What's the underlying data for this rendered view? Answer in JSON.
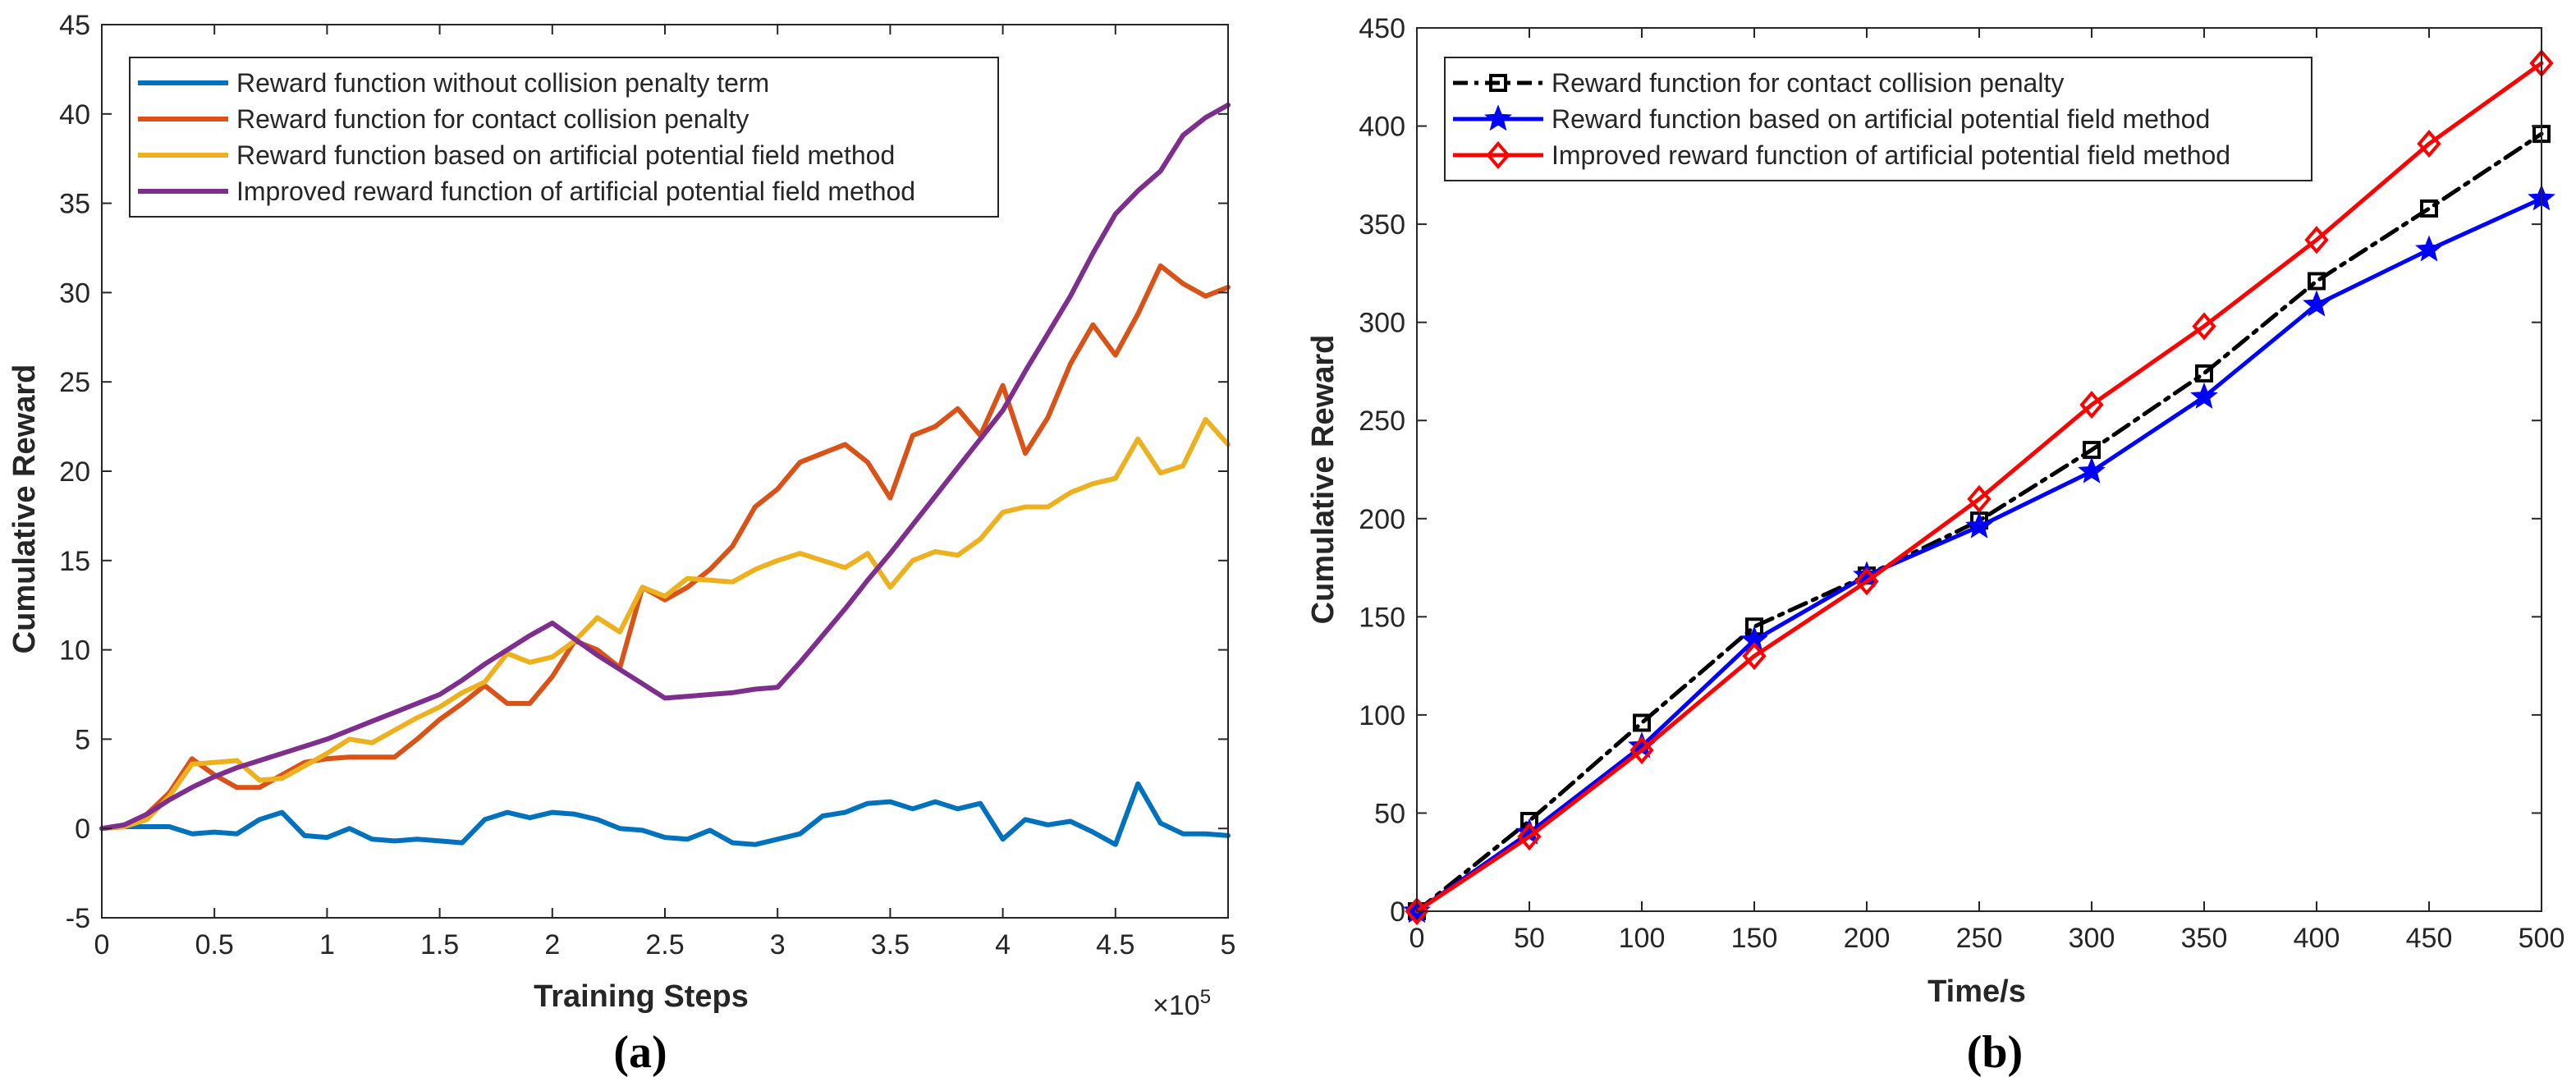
{
  "chart_data": [
    {
      "type": "line",
      "panel_label": "(a)",
      "xlabel": "Training Steps",
      "ylabel": "Cumulative Reward",
      "x_exponent_label": "×10",
      "x_exponent": "5",
      "xlim": [
        0,
        5
      ],
      "ylim": [
        -5,
        45
      ],
      "xticks": [
        0,
        0.5,
        1,
        1.5,
        2,
        2.5,
        3,
        3.5,
        4,
        4.5,
        5
      ],
      "xtick_labels": [
        "0",
        "0.5",
        "1",
        "1.5",
        "2",
        "2.5",
        "3",
        "3.5",
        "4",
        "4.5",
        "5"
      ],
      "yticks": [
        -5,
        0,
        5,
        10,
        15,
        20,
        25,
        30,
        35,
        40,
        45
      ],
      "ytick_labels": [
        "-5",
        "0",
        "5",
        "10",
        "15",
        "20",
        "25",
        "30",
        "35",
        "40",
        "45"
      ],
      "legend_position": "top-left",
      "series": [
        {
          "name": "Reward function without collision penalty term",
          "color": "#0072BD",
          "points": [
            [
              0,
              0
            ],
            [
              0.1,
              0.1
            ],
            [
              0.2,
              0.1
            ],
            [
              0.3,
              0.1
            ],
            [
              0.4,
              -0.3
            ],
            [
              0.5,
              -0.2
            ],
            [
              0.6,
              -0.3
            ],
            [
              0.7,
              0.5
            ],
            [
              0.8,
              0.9
            ],
            [
              0.9,
              -0.4
            ],
            [
              1.0,
              -0.5
            ],
            [
              1.1,
              0.0
            ],
            [
              1.2,
              -0.6
            ],
            [
              1.3,
              -0.7
            ],
            [
              1.4,
              -0.6
            ],
            [
              1.5,
              -0.7
            ],
            [
              1.6,
              -0.8
            ],
            [
              1.7,
              0.5
            ],
            [
              1.8,
              0.9
            ],
            [
              1.9,
              0.6
            ],
            [
              2.0,
              0.9
            ],
            [
              2.1,
              0.8
            ],
            [
              2.2,
              0.5
            ],
            [
              2.3,
              0.0
            ],
            [
              2.4,
              -0.1
            ],
            [
              2.5,
              -0.5
            ],
            [
              2.6,
              -0.6
            ],
            [
              2.7,
              -0.1
            ],
            [
              2.8,
              -0.8
            ],
            [
              2.9,
              -0.9
            ],
            [
              3.0,
              -0.6
            ],
            [
              3.1,
              -0.3
            ],
            [
              3.2,
              0.7
            ],
            [
              3.3,
              0.9
            ],
            [
              3.4,
              1.4
            ],
            [
              3.5,
              1.5
            ],
            [
              3.6,
              1.1
            ],
            [
              3.7,
              1.5
            ],
            [
              3.8,
              1.1
            ],
            [
              3.9,
              1.4
            ],
            [
              4.0,
              -0.6
            ],
            [
              4.1,
              0.5
            ],
            [
              4.2,
              0.2
            ],
            [
              4.3,
              0.4
            ],
            [
              4.4,
              -0.2
            ],
            [
              4.5,
              -0.9
            ],
            [
              4.6,
              2.5
            ],
            [
              4.7,
              0.3
            ],
            [
              4.8,
              -0.3
            ],
            [
              4.9,
              -0.3
            ],
            [
              5.0,
              -0.4
            ]
          ]
        },
        {
          "name": "Reward function for contact collision penalty",
          "color": "#D95319",
          "points": [
            [
              0,
              0
            ],
            [
              0.1,
              0.1
            ],
            [
              0.2,
              0.8
            ],
            [
              0.3,
              2.0
            ],
            [
              0.4,
              3.9
            ],
            [
              0.5,
              3.0
            ],
            [
              0.6,
              2.3
            ],
            [
              0.7,
              2.3
            ],
            [
              0.8,
              3.0
            ],
            [
              0.9,
              3.7
            ],
            [
              1.0,
              3.9
            ],
            [
              1.1,
              4.0
            ],
            [
              1.2,
              4.0
            ],
            [
              1.3,
              4.0
            ],
            [
              1.4,
              5.0
            ],
            [
              1.5,
              6.1
            ],
            [
              1.6,
              7.0
            ],
            [
              1.7,
              8.0
            ],
            [
              1.8,
              7.0
            ],
            [
              1.9,
              7.0
            ],
            [
              2.0,
              8.5
            ],
            [
              2.1,
              10.5
            ],
            [
              2.2,
              10.0
            ],
            [
              2.3,
              9.0
            ],
            [
              2.4,
              13.5
            ],
            [
              2.5,
              12.8
            ],
            [
              2.6,
              13.5
            ],
            [
              2.7,
              14.5
            ],
            [
              2.8,
              15.8
            ],
            [
              2.9,
              18.0
            ],
            [
              3.0,
              19.0
            ],
            [
              3.1,
              20.5
            ],
            [
              3.2,
              21.0
            ],
            [
              3.3,
              21.5
            ],
            [
              3.4,
              20.5
            ],
            [
              3.5,
              18.5
            ],
            [
              3.6,
              22.0
            ],
            [
              3.7,
              22.5
            ],
            [
              3.8,
              23.5
            ],
            [
              3.9,
              22.0
            ],
            [
              4.0,
              24.8
            ],
            [
              4.1,
              21.0
            ],
            [
              4.2,
              23.0
            ],
            [
              4.3,
              26.0
            ],
            [
              4.4,
              28.2
            ],
            [
              4.5,
              26.5
            ],
            [
              4.6,
              28.8
            ],
            [
              4.7,
              31.5
            ],
            [
              4.8,
              30.5
            ],
            [
              4.9,
              29.8
            ],
            [
              5.0,
              30.3
            ]
          ]
        },
        {
          "name": "Reward function based on artificial potential field method",
          "color": "#EDB120",
          "points": [
            [
              0,
              0
            ],
            [
              0.1,
              0.1
            ],
            [
              0.2,
              0.5
            ],
            [
              0.3,
              1.8
            ],
            [
              0.4,
              3.6
            ],
            [
              0.5,
              3.7
            ],
            [
              0.6,
              3.8
            ],
            [
              0.7,
              2.7
            ],
            [
              0.8,
              2.8
            ],
            [
              0.9,
              3.5
            ],
            [
              1.0,
              4.2
            ],
            [
              1.1,
              5.0
            ],
            [
              1.2,
              4.8
            ],
            [
              1.3,
              5.5
            ],
            [
              1.4,
              6.2
            ],
            [
              1.5,
              6.8
            ],
            [
              1.6,
              7.6
            ],
            [
              1.7,
              8.2
            ],
            [
              1.8,
              9.8
            ],
            [
              1.9,
              9.3
            ],
            [
              2.0,
              9.6
            ],
            [
              2.1,
              10.5
            ],
            [
              2.2,
              11.8
            ],
            [
              2.3,
              11.0
            ],
            [
              2.4,
              13.5
            ],
            [
              2.5,
              13.0
            ],
            [
              2.6,
              14.0
            ],
            [
              2.7,
              13.9
            ],
            [
              2.8,
              13.8
            ],
            [
              2.9,
              14.5
            ],
            [
              3.0,
              15.0
            ],
            [
              3.1,
              15.4
            ],
            [
              3.2,
              15.0
            ],
            [
              3.3,
              14.6
            ],
            [
              3.4,
              15.4
            ],
            [
              3.5,
              13.5
            ],
            [
              3.6,
              15.0
            ],
            [
              3.7,
              15.5
            ],
            [
              3.8,
              15.3
            ],
            [
              3.9,
              16.2
            ],
            [
              4.0,
              17.7
            ],
            [
              4.1,
              18.0
            ],
            [
              4.2,
              18.0
            ],
            [
              4.3,
              18.8
            ],
            [
              4.4,
              19.3
            ],
            [
              4.5,
              19.6
            ],
            [
              4.6,
              21.8
            ],
            [
              4.7,
              19.9
            ],
            [
              4.8,
              20.3
            ],
            [
              4.9,
              22.9
            ],
            [
              5.0,
              21.5
            ]
          ]
        },
        {
          "name": "Improved reward function of artificial potential field method",
          "color": "#7E2F8E",
          "points": [
            [
              0,
              0
            ],
            [
              0.1,
              0.2
            ],
            [
              0.2,
              0.8
            ],
            [
              0.3,
              1.6
            ],
            [
              0.4,
              2.3
            ],
            [
              0.5,
              2.9
            ],
            [
              0.6,
              3.4
            ],
            [
              0.7,
              3.8
            ],
            [
              0.8,
              4.2
            ],
            [
              0.9,
              4.6
            ],
            [
              1.0,
              5.0
            ],
            [
              1.1,
              5.5
            ],
            [
              1.2,
              6.0
            ],
            [
              1.3,
              6.5
            ],
            [
              1.4,
              7.0
            ],
            [
              1.5,
              7.5
            ],
            [
              1.6,
              8.3
            ],
            [
              1.7,
              9.2
            ],
            [
              1.8,
              10.0
            ],
            [
              1.9,
              10.8
            ],
            [
              2.0,
              11.5
            ],
            [
              2.1,
              10.6
            ],
            [
              2.2,
              9.7
            ],
            [
              2.3,
              8.9
            ],
            [
              2.4,
              8.1
            ],
            [
              2.5,
              7.3
            ],
            [
              2.6,
              7.4
            ],
            [
              2.7,
              7.5
            ],
            [
              2.8,
              7.6
            ],
            [
              2.9,
              7.8
            ],
            [
              3.0,
              7.9
            ],
            [
              3.1,
              9.3
            ],
            [
              3.2,
              10.8
            ],
            [
              3.3,
              12.3
            ],
            [
              3.4,
              13.9
            ],
            [
              3.5,
              15.4
            ],
            [
              3.6,
              17.0
            ],
            [
              3.7,
              18.6
            ],
            [
              3.8,
              20.2
            ],
            [
              3.9,
              21.8
            ],
            [
              4.0,
              23.4
            ],
            [
              4.1,
              25.6
            ],
            [
              4.2,
              27.7
            ],
            [
              4.3,
              29.8
            ],
            [
              4.4,
              32.2
            ],
            [
              4.5,
              34.4
            ],
            [
              4.6,
              35.7
            ],
            [
              4.7,
              36.8
            ],
            [
              4.8,
              38.8
            ],
            [
              4.9,
              39.8
            ],
            [
              5.0,
              40.5
            ]
          ]
        }
      ]
    },
    {
      "type": "line",
      "panel_label": "(b)",
      "xlabel": "Time/s",
      "ylabel": "Cumulative Reward",
      "xlim": [
        0,
        500
      ],
      "ylim": [
        0,
        450
      ],
      "xticks": [
        0,
        50,
        100,
        150,
        200,
        250,
        300,
        350,
        400,
        450,
        500
      ],
      "xtick_labels": [
        "0",
        "50",
        "100",
        "150",
        "200",
        "250",
        "300",
        "350",
        "400",
        "450",
        "500"
      ],
      "yticks": [
        0,
        50,
        100,
        150,
        200,
        250,
        300,
        350,
        400,
        450
      ],
      "ytick_labels": [
        "0",
        "50",
        "100",
        "150",
        "200",
        "250",
        "300",
        "350",
        "400",
        "450"
      ],
      "legend_position": "top-left",
      "series": [
        {
          "name": "Reward function for contact collision penalty",
          "color": "#000000",
          "marker": "square",
          "dash": "dashdot",
          "points": [
            [
              0,
              0
            ],
            [
              50,
              46
            ],
            [
              100,
              96
            ],
            [
              150,
              145
            ],
            [
              200,
              171
            ],
            [
              250,
              199
            ],
            [
              300,
              235
            ],
            [
              350,
              274
            ],
            [
              400,
              321
            ],
            [
              450,
              358
            ],
            [
              500,
              396
            ]
          ]
        },
        {
          "name": "Reward function based on artificial potential field method",
          "color": "#0000FF",
          "marker": "star",
          "dash": "solid",
          "points": [
            [
              0,
              0
            ],
            [
              50,
              40
            ],
            [
              100,
              84
            ],
            [
              150,
              138
            ],
            [
              200,
              171
            ],
            [
              250,
              196
            ],
            [
              300,
              224
            ],
            [
              350,
              262
            ],
            [
              400,
              309
            ],
            [
              450,
              337
            ],
            [
              500,
              363
            ]
          ]
        },
        {
          "name": "Improved reward function of artificial potential field method",
          "color": "#FF0000",
          "marker": "diamond",
          "dash": "solid",
          "points": [
            [
              0,
              0
            ],
            [
              50,
              38
            ],
            [
              100,
              82
            ],
            [
              150,
              130
            ],
            [
              200,
              168
            ],
            [
              250,
              210
            ],
            [
              300,
              258
            ],
            [
              350,
              298
            ],
            [
              400,
              342
            ],
            [
              450,
              391
            ],
            [
              500,
              432
            ]
          ]
        }
      ]
    }
  ]
}
